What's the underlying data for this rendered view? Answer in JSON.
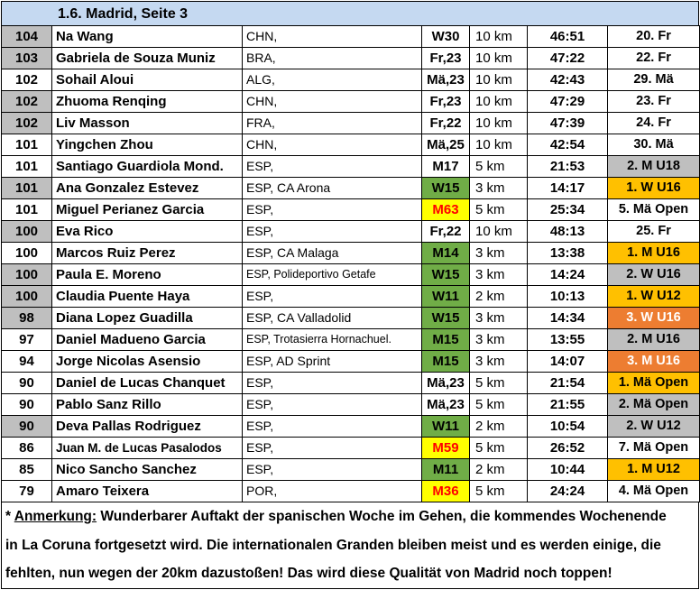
{
  "title": "1.6. Madrid, Seite 3",
  "colors": {
    "header_bg": "#c5d9f1",
    "points_grey": "#bfbfbf",
    "category_green": "#70ad47",
    "category_yellow": "#ffff00",
    "category_red_text": "#ff0000",
    "place_gold": "#ffc000",
    "place_silver": "#bfbfbf",
    "place_bronze": "#ed7d31"
  },
  "rows": [
    {
      "points": "104",
      "points_grey": true,
      "name": "Na Wang",
      "club": "CHN,",
      "category": "W30",
      "cat_style": "",
      "distance": "10 km",
      "time": "46:51",
      "place": "20. Fr",
      "place_style": ""
    },
    {
      "points": "103",
      "points_grey": true,
      "name": "Gabriela de Souza Muniz",
      "club": "BRA,",
      "category": "Fr,23",
      "cat_style": "",
      "distance": "10 km",
      "time": "47:22",
      "place": "22. Fr",
      "place_style": ""
    },
    {
      "points": "102",
      "points_grey": false,
      "name": "Sohail Aloui",
      "club": "ALG,",
      "category": "Mä,23",
      "cat_style": "",
      "distance": "10 km",
      "time": "42:43",
      "place": "29. Mä",
      "place_style": ""
    },
    {
      "points": "102",
      "points_grey": true,
      "name": "Zhuoma Renqing",
      "club": "CHN,",
      "category": "Fr,23",
      "cat_style": "",
      "distance": "10 km",
      "time": "47:29",
      "place": "23. Fr",
      "place_style": ""
    },
    {
      "points": "102",
      "points_grey": true,
      "name": "Liv Masson",
      "club": "FRA,",
      "category": "Fr,22",
      "cat_style": "",
      "distance": "10 km",
      "time": "47:39",
      "place": "24. Fr",
      "place_style": ""
    },
    {
      "points": "101",
      "points_grey": false,
      "name": "Yingchen Zhou",
      "club": "CHN,",
      "category": "Mä,25",
      "cat_style": "",
      "distance": "10 km",
      "time": "42:54",
      "place": "30. Mä",
      "place_style": ""
    },
    {
      "points": "101",
      "points_grey": false,
      "name": "Santiago Guardiola Mond.",
      "club": "ESP,",
      "category": "M17",
      "cat_style": "",
      "distance": "5 km",
      "time": "21:53",
      "place": "2. M U18",
      "place_style": "grey"
    },
    {
      "points": "101",
      "points_grey": true,
      "name": "Ana Gonzalez Estevez",
      "club": "ESP, CA Arona",
      "category": "W15",
      "cat_style": "green",
      "distance": "3 km",
      "time": "14:17",
      "place": "1. W U16",
      "place_style": "orange"
    },
    {
      "points": "101",
      "points_grey": false,
      "name": "Miguel Perianez Garcia",
      "club": "ESP,",
      "category": "M63",
      "cat_style": "yellow",
      "distance": "5 km",
      "time": "25:34",
      "place": "5. Mä Open",
      "place_style": ""
    },
    {
      "points": "100",
      "points_grey": true,
      "name": "Eva Rico",
      "club": "ESP,",
      "category": "Fr,22",
      "cat_style": "",
      "distance": "10 km",
      "time": "48:13",
      "place": "25. Fr",
      "place_style": ""
    },
    {
      "points": "100",
      "points_grey": false,
      "name": "Marcos Ruiz Perez",
      "club": "ESP, CA Malaga",
      "category": "M14",
      "cat_style": "green",
      "distance": "3 km",
      "time": "13:38",
      "place": "1. M U16",
      "place_style": "orange"
    },
    {
      "points": "100",
      "points_grey": true,
      "name": "Paula E. Moreno",
      "club": "ESP, Polideportivo Getafe",
      "category": "W15",
      "cat_style": "green",
      "distance": "3 km",
      "time": "14:24",
      "place": "2. W U16",
      "place_style": "grey"
    },
    {
      "points": "100",
      "points_grey": true,
      "name": "Claudia Puente Haya",
      "club": "ESP,",
      "category": "W11",
      "cat_style": "green",
      "distance": "2 km",
      "time": "10:13",
      "place": "1. W U12",
      "place_style": "orange"
    },
    {
      "points": "98",
      "points_grey": true,
      "name": "Diana Lopez Guadilla",
      "club": "ESP, CA Valladolid",
      "category": "W15",
      "cat_style": "green",
      "distance": "3 km",
      "time": "14:34",
      "place": "3. W U16",
      "place_style": "dkorange"
    },
    {
      "points": "97",
      "points_grey": false,
      "name": "Daniel Madueno Garcia",
      "club": "ESP, Trotasierra Hornachuel.",
      "category": "M15",
      "cat_style": "green",
      "distance": "3 km",
      "time": "13:55",
      "place": "2. M U16",
      "place_style": "grey"
    },
    {
      "points": "94",
      "points_grey": false,
      "name": "Jorge Nicolas Asensio",
      "club": "ESP, AD Sprint",
      "category": "M15",
      "cat_style": "green",
      "distance": "3 km",
      "time": "14:07",
      "place": "3. M U16",
      "place_style": "dkorange"
    },
    {
      "points": "90",
      "points_grey": false,
      "name": "Daniel de Lucas Chanquet",
      "club": "ESP,",
      "category": "Mä,23",
      "cat_style": "",
      "distance": "5 km",
      "time": "21:54",
      "place": "1. Mä Open",
      "place_style": "orange"
    },
    {
      "points": "90",
      "points_grey": false,
      "name": "Pablo Sanz Rillo",
      "club": "ESP,",
      "category": "Mä,23",
      "cat_style": "",
      "distance": "5 km",
      "time": "21:55",
      "place": "2. Mä Open",
      "place_style": "grey"
    },
    {
      "points": "90",
      "points_grey": true,
      "name": "Deva Pallas Rodriguez",
      "club": "ESP,",
      "category": "W11",
      "cat_style": "green",
      "distance": "2 km",
      "time": "10:54",
      "place": "2. W U12",
      "place_style": "grey"
    },
    {
      "points": "86",
      "points_grey": false,
      "name": "Juan M. de Lucas Pasalodos",
      "club": "ESP,",
      "category": "M59",
      "cat_style": "yellow",
      "distance": "5 km",
      "time": "26:52",
      "place": "7. Mä Open",
      "place_style": ""
    },
    {
      "points": "85",
      "points_grey": false,
      "name": "Nico Sancho Sanchez",
      "club": "ESP,",
      "category": "M11",
      "cat_style": "green",
      "distance": "2 km",
      "time": "10:44",
      "place": "1. M U12",
      "place_style": "orange"
    },
    {
      "points": "79",
      "points_grey": false,
      "name": "Amaro Teixera",
      "club": "POR,",
      "category": "M36",
      "cat_style": "yellow",
      "distance": "5 km",
      "time": "24:24",
      "place": "4. Mä Open",
      "place_style": ""
    }
  ],
  "note": {
    "prefix": "* ",
    "label": "Anmerkung:",
    "line1": " Wunderbarer Auftakt der spanischen Woche im Gehen, die kommendes Wochenende",
    "line2": "in La Coruna fortgesetzt wird. Die internationalen Granden bleiben meist und es werden einige, die",
    "line3": "fehlten, nun wegen der 20km dazustoßen! Das wird diese Qualität von Madrid noch toppen!"
  }
}
